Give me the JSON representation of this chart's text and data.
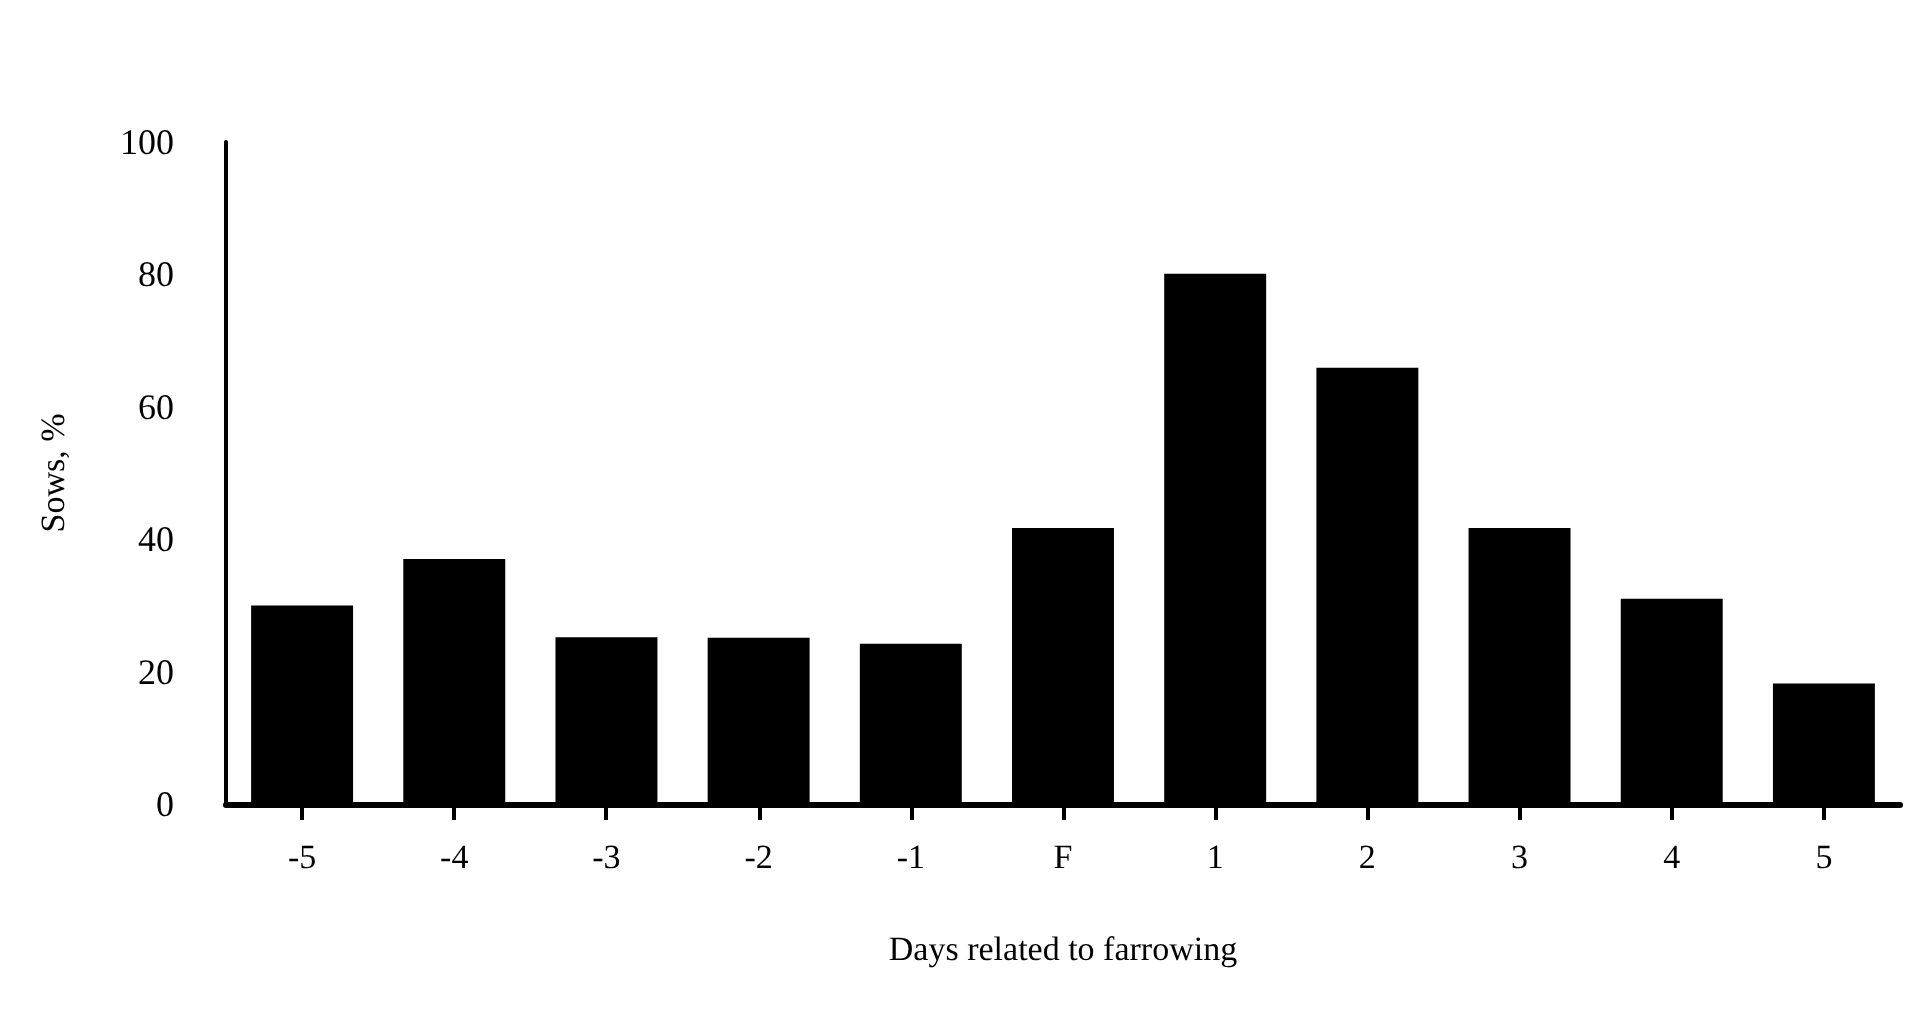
{
  "chart_data": {
    "type": "bar",
    "xlabel": "Days related to farrowing",
    "ylabel": "Sows, %",
    "categories": [
      "-5",
      "-4",
      "-3",
      "-2",
      "-1",
      "F",
      "1",
      "2",
      "3",
      "4",
      "5"
    ],
    "values": [
      30,
      37,
      25.2,
      25.1,
      24.2,
      41.7,
      80.1,
      65.9,
      41.7,
      31,
      18.2
    ],
    "color": "#000000",
    "ylim": [
      0,
      100
    ],
    "yticks": [
      0,
      20,
      40,
      60,
      80,
      100
    ],
    "grid": false
  }
}
